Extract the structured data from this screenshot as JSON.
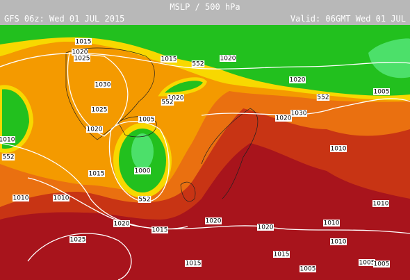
{
  "header": {
    "title": "MSLP / 500 hPa",
    "run": "GFS 06z: Wed 01 JUL 2015",
    "valid": "Valid: 06GMT Wed 01 JUL"
  },
  "contour_labels": [
    "1015",
    "1020",
    "1025",
    "1015",
    "552",
    "1020",
    "1030",
    "1025",
    "1020",
    "1005",
    "1020",
    "552",
    "1030",
    "1020",
    "1020",
    "552",
    "1005",
    "1010",
    "552",
    "1000",
    "1015",
    "1010",
    "552",
    "1010",
    "1010",
    "1010",
    "1020",
    "1015",
    "1020",
    "1020",
    "1010",
    "1010",
    "1025",
    "1015",
    "1015",
    "1005",
    "1005",
    "1005"
  ]
}
